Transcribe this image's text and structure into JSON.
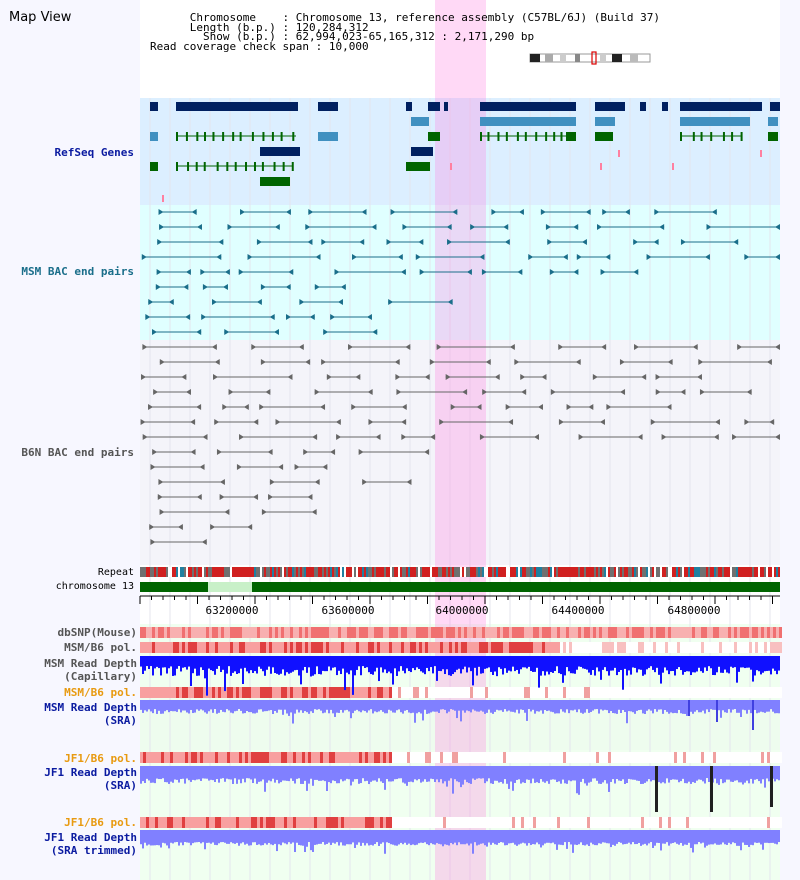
{
  "title": "Map View",
  "info": {
    "chromosome_label": "Chromosome",
    "chromosome_value": "Chromosome 13, reference assembly (C57BL/6J) (Build 37)",
    "length_label": "Length (b.p.)",
    "length_value": "120,284,312",
    "show_label": "Show (b.p.)",
    "show_value": "62,994,023-65,165,312 : 2,171,290 bp",
    "coverage_label": "Read coverage check span",
    "coverage_value": "10,000"
  },
  "tracks": {
    "refseq": "RefSeq Genes",
    "msm_bac": "MSM BAC end pairs",
    "b6n_bac": "B6N BAC end pairs",
    "repeat": "Repeat",
    "chromosome": "chromosome 13",
    "dbsnp": "dbSNP(Mouse)",
    "msm_b6_pol1": "MSM/B6 pol.",
    "msm_depth_cap_1": "MSM Read Depth",
    "msm_depth_cap_2": "(Capillary)",
    "msm_b6_pol2": "MSM/B6 pol.",
    "msm_depth_sra_1": "MSM Read Depth",
    "msm_depth_sra_2": "(SRA)",
    "jf1_b6_pol1": "JF1/B6 pol.",
    "jf1_depth_sra_1": "JF1 Read Depth",
    "jf1_depth_sra_2": "(SRA)",
    "jf1_b6_pol2": "JF1/B6 pol.",
    "jf1_depth_trim_1": "JF1 Read Depth",
    "jf1_depth_trim_2": "(SRA trimmed)"
  },
  "axis_ticks": [
    "63200000",
    "63600000",
    "64000000",
    "64400000",
    "64800000"
  ],
  "colors": {
    "refseq_bg": "#dcefff",
    "msm_bg": "#e0ffff",
    "highlight": "#ff80e0",
    "gene_dark": "#002060",
    "gene_mid": "#4090c0",
    "gene_green": "#006400",
    "chromosome": "#006400",
    "depth_blue": "#1010ff",
    "depth_light": "#8080ff"
  }
}
